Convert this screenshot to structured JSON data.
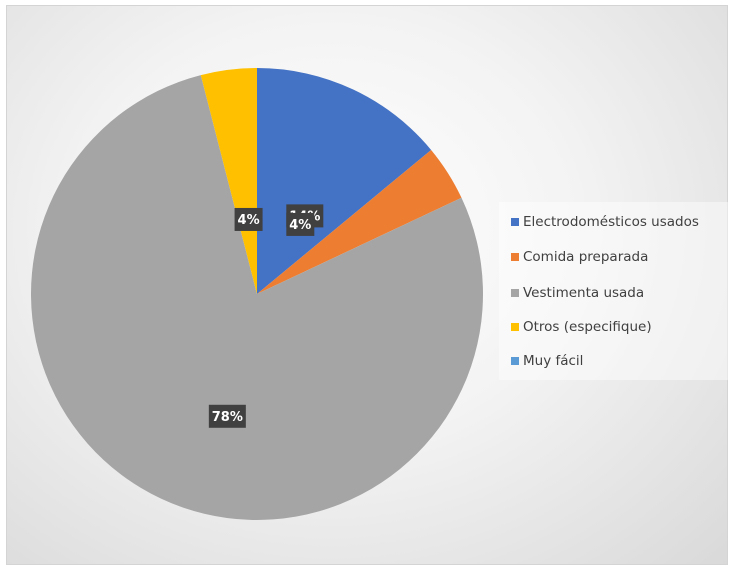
{
  "chart_data": {
    "type": "pie",
    "slices": [
      {
        "label": "Electrodomésticos usados",
        "value": 14,
        "display": "14%",
        "color": "#4472C4"
      },
      {
        "label": "Comida preparada",
        "value": 4,
        "display": "4%",
        "color": "#ED7D31"
      },
      {
        "label": "Vestimenta usada",
        "value": 78,
        "display": "78%",
        "color": "#A5A5A5"
      },
      {
        "label": "Otros (especifique)",
        "value": 4,
        "display": "4%",
        "color": "#FFC000"
      },
      {
        "label": "Muy fácil",
        "value": 0,
        "display": "",
        "color": "#5B9BD5"
      }
    ],
    "legend_position": "right",
    "start_angle": "12 o'clock",
    "direction": "clockwise"
  }
}
